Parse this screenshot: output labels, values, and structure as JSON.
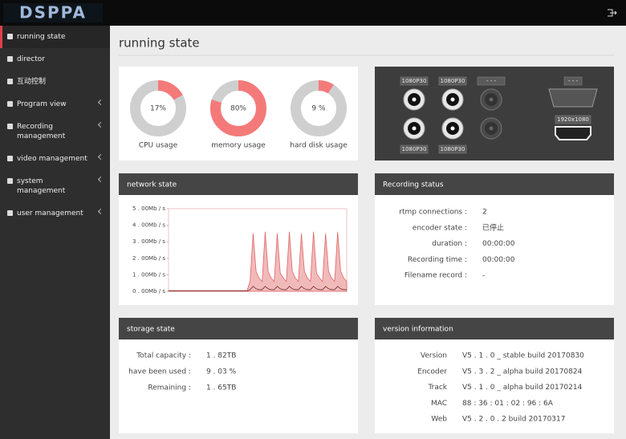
{
  "header": {
    "logo": "DSPPA"
  },
  "sidebar": {
    "items": [
      "running state",
      "director",
      "互动控制",
      "Program view",
      "Recording management",
      "video management",
      "system management",
      "user management"
    ]
  },
  "page_title": "running state",
  "gauges": [
    {
      "label": "CPU usage",
      "value": 17,
      "value_label": "17%"
    },
    {
      "label": "memory usage",
      "value": 80,
      "value_label": "80%"
    },
    {
      "label": "hard disk usage",
      "value": 9,
      "value_label": "9 %"
    }
  ],
  "video_ports": {
    "sdi_top": [
      "1080P30",
      "1080P30",
      "- - -"
    ],
    "sdi_bottom": [
      "1080P30",
      "1080P30"
    ],
    "vga": "- - -",
    "hdmi": "1920x1080"
  },
  "network": {
    "title": "network state",
    "chart_data": {
      "type": "area",
      "ylim": [
        0,
        5
      ],
      "yticks": [
        {
          "value": 0,
          "label": "0 . 00Mb / s"
        },
        {
          "value": 1,
          "label": "1 . 00Mb / s"
        },
        {
          "value": 2,
          "label": "2 . 00Mb / s"
        },
        {
          "value": 3,
          "label": "3 . 00Mb / s"
        },
        {
          "value": 4,
          "label": "4 . 00Mb / s"
        },
        {
          "value": 5,
          "label": "5 . 00Mb / s"
        }
      ],
      "series": [
        {
          "color": "#e06666",
          "values": [
            0.05,
            0.05,
            0.05,
            0.05,
            0.05,
            0.05,
            0.05,
            0.05,
            0.05,
            0.05,
            0.05,
            0.05,
            0.05,
            0.05,
            0.05,
            0.05,
            0.05,
            0.05,
            0.05,
            0.05,
            0.05,
            0.05,
            0.05,
            0.05,
            0.05,
            0.05,
            0.05,
            0.6,
            3.5,
            1.2,
            0.8,
            0.6,
            3.6,
            1.2,
            0.8,
            0.6,
            3.5,
            1.1,
            0.8,
            0.6,
            3.6,
            1.2,
            0.8,
            0.6,
            3.5,
            1.2,
            0.8,
            0.6,
            3.6,
            1.1,
            0.8,
            0.6,
            3.5,
            1.2,
            0.8,
            0.6,
            3.6,
            1.2,
            0.8,
            0.6
          ]
        },
        {
          "color": "#7a2f2f",
          "values": [
            0.02,
            0.02,
            0.02,
            0.02,
            0.02,
            0.02,
            0.02,
            0.02,
            0.02,
            0.02,
            0.02,
            0.02,
            0.02,
            0.02,
            0.02,
            0.02,
            0.02,
            0.02,
            0.02,
            0.02,
            0.02,
            0.02,
            0.02,
            0.02,
            0.02,
            0.02,
            0.02,
            0.1,
            0.3,
            0.15,
            0.1,
            0.1,
            0.3,
            0.15,
            0.1,
            0.1,
            0.3,
            0.15,
            0.1,
            0.1,
            0.3,
            0.15,
            0.1,
            0.1,
            0.3,
            0.15,
            0.1,
            0.1,
            0.3,
            0.15,
            0.1,
            0.1,
            0.3,
            0.15,
            0.1,
            0.1,
            0.3,
            0.15,
            0.1,
            0.1
          ]
        }
      ]
    }
  },
  "recording": {
    "title": "Recording status",
    "rows": [
      [
        "rtmp connections :",
        "2"
      ],
      [
        "encoder state :",
        "已停止"
      ],
      [
        "duration :",
        "00:00:00"
      ],
      [
        "Recording time :",
        "00:00:00"
      ],
      [
        "Filename record :",
        "-"
      ]
    ]
  },
  "storage": {
    "title": "storage state",
    "rows": [
      [
        "Total capacity :",
        "1 . 82TB"
      ],
      [
        "have been used :",
        "9 . 03 %"
      ],
      [
        "Remaining :",
        "1 . 65TB"
      ]
    ]
  },
  "version": {
    "title": "version information",
    "rows": [
      [
        "Version",
        "V5 . 1 . 0 _ stable build 20170830"
      ],
      [
        "Encoder",
        "V5 . 3 . 2 _ alpha build 20170824"
      ],
      [
        "Track",
        "V5 . 1 . 0 _ alpha build 20170214"
      ],
      [
        "MAC",
        "88 : 36 : 01 : 02 : 96 : 6A"
      ],
      [
        "Web",
        "V5 . 2 . 0 . 2 build 20170317"
      ]
    ]
  }
}
